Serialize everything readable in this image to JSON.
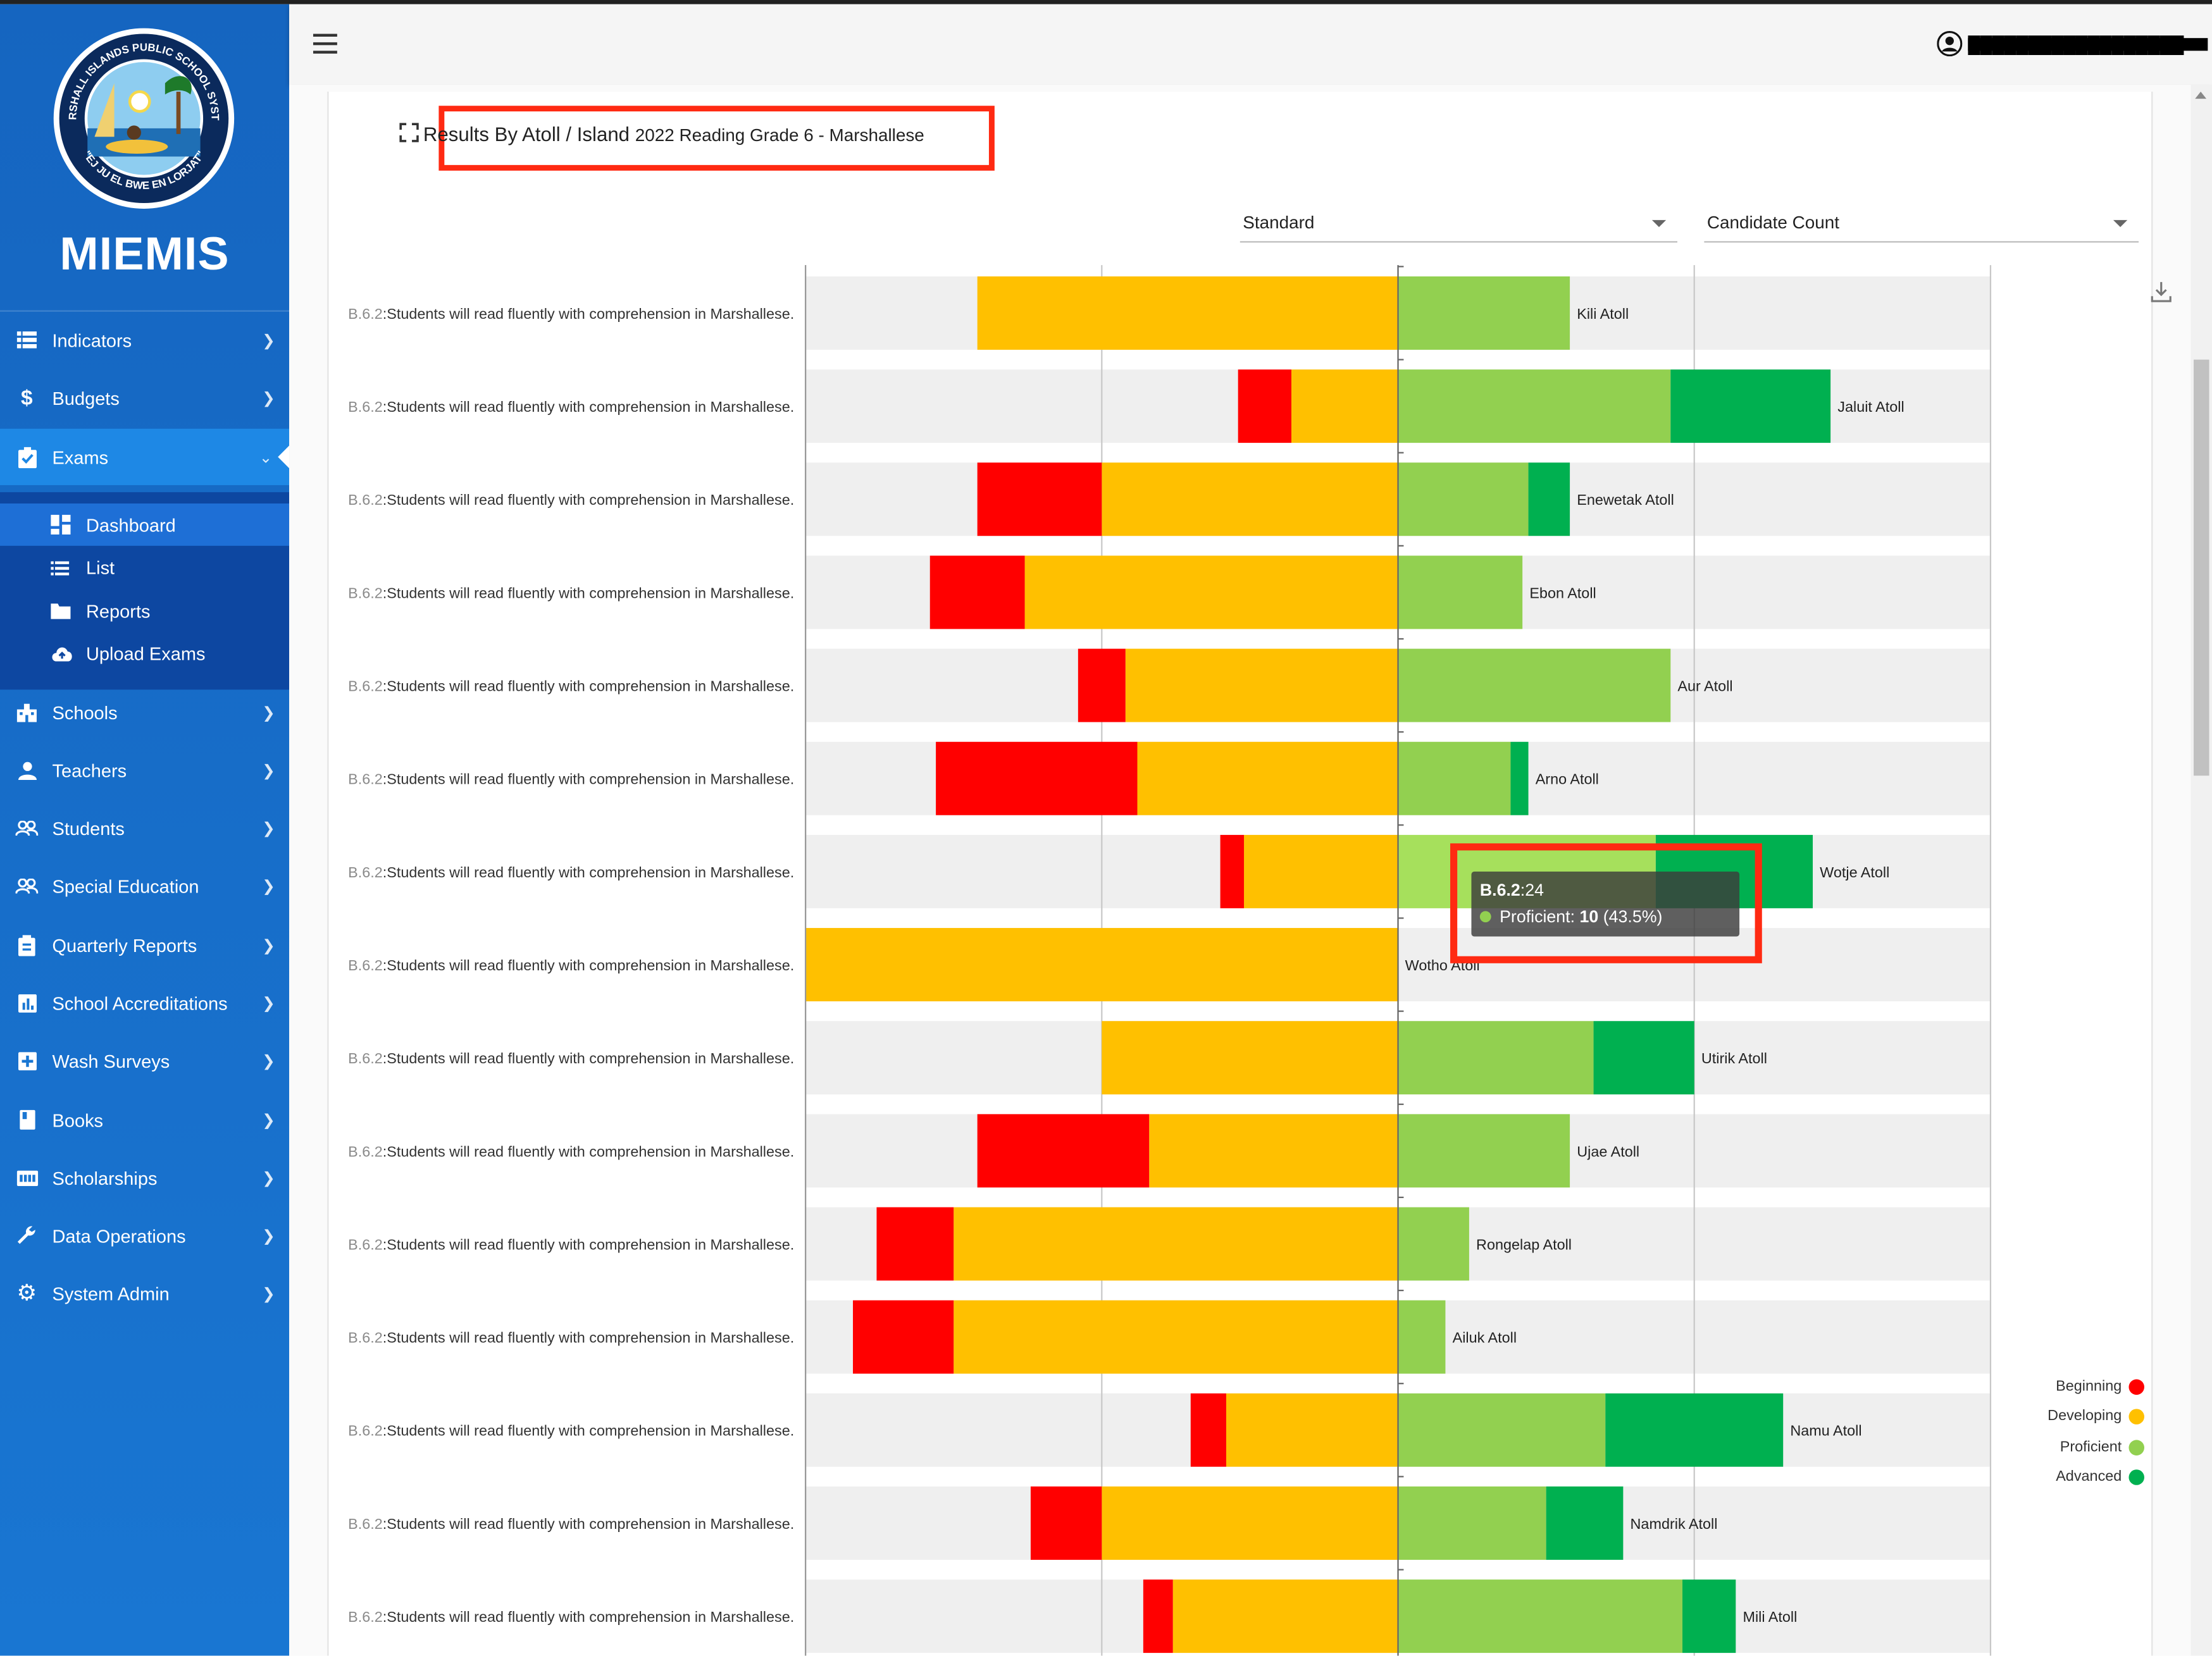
{
  "app": {
    "name": "MIEMIS",
    "logo": {
      "top_text": "MARSHALL ISLANDS PUBLIC SCHOOL SYSTEM",
      "bottom_text": "\"EJ JU EL BWE EN LORJAT\""
    }
  },
  "sidebar": {
    "items": [
      {
        "label": "Indicators",
        "icon": "list-icon"
      },
      {
        "label": "Budgets",
        "icon": "dollar-icon"
      },
      {
        "label": "Exams",
        "icon": "clipboard-check-icon",
        "expanded": true
      },
      {
        "label": "Schools",
        "icon": "school-building-icon"
      },
      {
        "label": "Teachers",
        "icon": "person-icon"
      },
      {
        "label": "Students",
        "icon": "people-icon"
      },
      {
        "label": "Special Education",
        "icon": "people-icon"
      },
      {
        "label": "Quarterly Reports",
        "icon": "clipboard-icon"
      },
      {
        "label": "School Accreditations",
        "icon": "bar-chart-icon"
      },
      {
        "label": "Wash Surveys",
        "icon": "plus-box-icon"
      },
      {
        "label": "Books",
        "icon": "book-icon"
      },
      {
        "label": "Scholarships",
        "icon": "id-card-icon"
      },
      {
        "label": "Data Operations",
        "icon": "wrench-icon"
      },
      {
        "label": "System Admin",
        "icon": "gear-icon"
      }
    ],
    "exams_subitems": [
      {
        "label": "Dashboard",
        "icon": "dashboard-icon",
        "active": true
      },
      {
        "label": "List",
        "icon": "list-icon"
      },
      {
        "label": "Reports",
        "icon": "folder-icon"
      },
      {
        "label": "Upload Exams",
        "icon": "cloud-upload-icon"
      }
    ]
  },
  "header": {
    "user_email": "██████████████████"
  },
  "panel": {
    "title_main": "Results By Atoll / Island",
    "title_sub": "2022 Reading Grade 6 - Marshallese",
    "select_left": "Standard",
    "select_right": "Candidate Count"
  },
  "tooltip": {
    "code": "B.6.2",
    "count": ":24",
    "series": "Proficient:",
    "value": "10",
    "pct": "(43.5%)"
  },
  "chart_data": {
    "type": "bar",
    "orientation": "horizontal-diverging",
    "category_code": "B.6.2",
    "category_text": ":Students will read fluently with comprehension in Marshallese.",
    "colors": {
      "Beginning": "#ff0000",
      "Developing": "#ffc000",
      "Proficient": "#92d050",
      "Advanced": "#00b050"
    },
    "legend": [
      "Beginning",
      "Developing",
      "Proficient",
      "Advanced"
    ],
    "legend_position": "bottom-right",
    "grid": true,
    "rows": [
      {
        "label": "Kili Atoll",
        "Beginning": 0,
        "Developing": 71,
        "Proficient": 29,
        "Advanced": 0
      },
      {
        "label": "Jaluit Atoll",
        "Beginning": 9,
        "Developing": 18,
        "Proficient": 46,
        "Advanced": 27
      },
      {
        "label": "Enewetak Atoll",
        "Beginning": 21,
        "Developing": 50,
        "Proficient": 22,
        "Advanced": 7
      },
      {
        "label": "Ebon Atoll",
        "Beginning": 16,
        "Developing": 63,
        "Proficient": 21,
        "Advanced": 0
      },
      {
        "label": "Aur Atoll",
        "Beginning": 8,
        "Developing": 46,
        "Proficient": 46,
        "Advanced": 0
      },
      {
        "label": "Arno Atoll",
        "Beginning": 34,
        "Developing": 44,
        "Proficient": 19,
        "Advanced": 3
      },
      {
        "label": "Wotje Atoll",
        "Beginning": 4,
        "Developing": 26,
        "Proficient": 43.5,
        "Advanced": 26.5
      },
      {
        "label": "Wotho Atoll",
        "Beginning": 0,
        "Developing": 100,
        "Proficient": 0,
        "Advanced": 0
      },
      {
        "label": "Utirik Atoll",
        "Beginning": 0,
        "Developing": 50,
        "Proficient": 33,
        "Advanced": 17
      },
      {
        "label": "Ujae Atoll",
        "Beginning": 29,
        "Developing": 42,
        "Proficient": 29,
        "Advanced": 0
      },
      {
        "label": "Rongelap Atoll",
        "Beginning": 13,
        "Developing": 75,
        "Proficient": 12,
        "Advanced": 0
      },
      {
        "label": "Ailuk Atoll",
        "Beginning": 17,
        "Developing": 75,
        "Proficient": 8,
        "Advanced": 0
      },
      {
        "label": "Namu Atoll",
        "Beginning": 6,
        "Developing": 29,
        "Proficient": 35,
        "Advanced": 30
      },
      {
        "label": "Namdrik Atoll",
        "Beginning": 12,
        "Developing": 50,
        "Proficient": 25,
        "Advanced": 13
      },
      {
        "label": "Mili Atoll",
        "Beginning": 5,
        "Developing": 38,
        "Proficient": 48,
        "Advanced": 9
      }
    ]
  }
}
